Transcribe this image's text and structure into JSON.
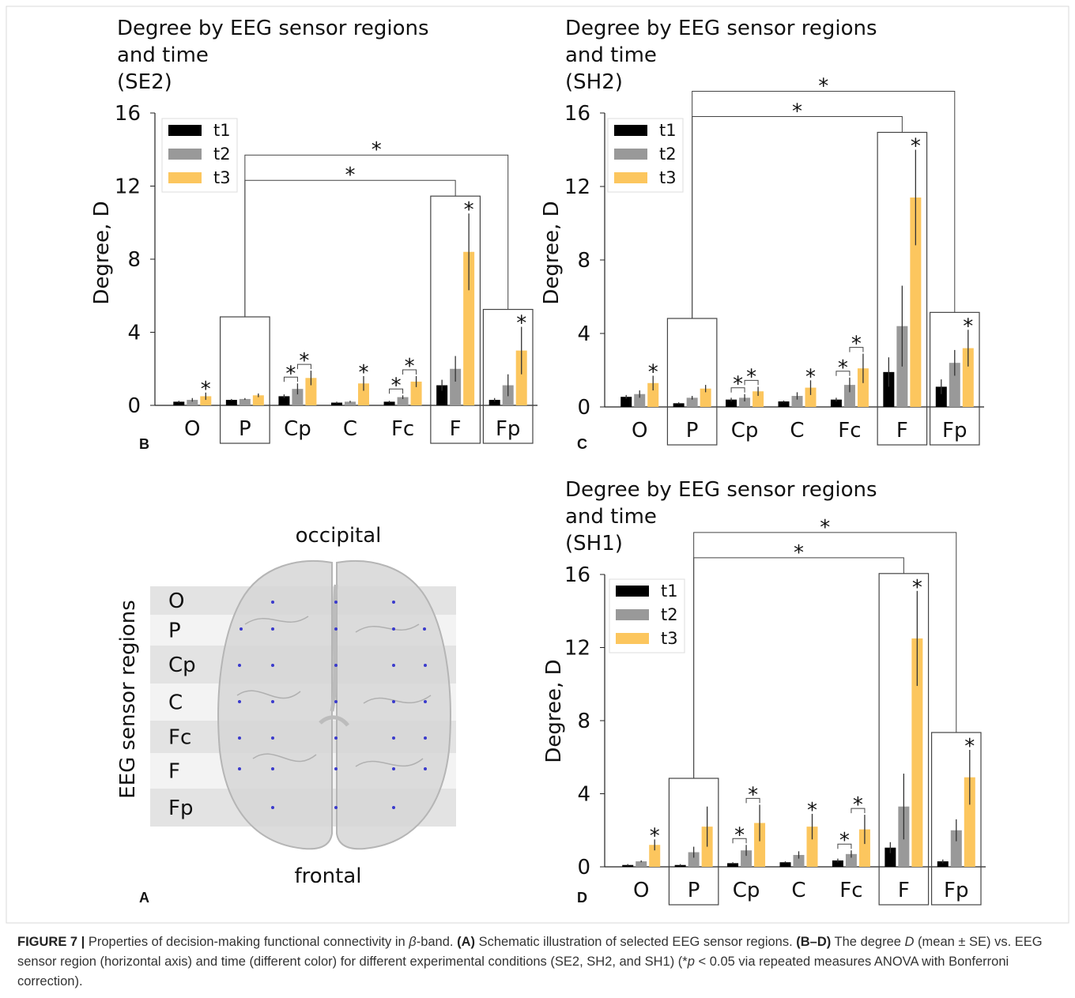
{
  "panel_a": {
    "label": "A",
    "top_label": "occipital",
    "bottom_label": "frontal",
    "axis_label": "EEG sensor regions",
    "regions": [
      "O",
      "P",
      "Cp",
      "C",
      "Fc",
      "F",
      "Fp"
    ]
  },
  "chart_data": [
    {
      "type": "bar",
      "panel_label": "B",
      "title": [
        "Degree by EEG sensor regions",
        "and time",
        "(SE2)"
      ],
      "ylabel": "Degree, D",
      "categories": [
        "O",
        "P",
        "Cp",
        "C",
        "Fc",
        "F",
        "Fp"
      ],
      "ylim": [
        0,
        16
      ],
      "yticks": [
        0,
        4,
        8,
        12,
        16
      ],
      "legend": "upper left",
      "series": [
        {
          "name": "t1",
          "color": "#000000",
          "values": [
            0.2,
            0.3,
            0.5,
            0.15,
            0.2,
            1.1,
            0.3
          ],
          "errors": [
            0.05,
            0.05,
            0.1,
            0.05,
            0.05,
            0.3,
            0.1
          ]
        },
        {
          "name": "t2",
          "color": "#999999",
          "values": [
            0.3,
            0.35,
            0.9,
            0.2,
            0.45,
            2.0,
            1.1
          ],
          "errors": [
            0.1,
            0.05,
            0.3,
            0.05,
            0.1,
            0.7,
            0.6
          ]
        },
        {
          "name": "t3",
          "color": "#fcc65e",
          "values": [
            0.5,
            0.55,
            1.5,
            1.2,
            1.3,
            8.4,
            3.0
          ],
          "errors": [
            0.2,
            0.1,
            0.4,
            0.4,
            0.3,
            2.1,
            1.3
          ]
        }
      ],
      "boxed": [
        "P",
        "F",
        "Fp"
      ],
      "brackets": [
        {
          "from": "P",
          "to": "F",
          "label": "*"
        },
        {
          "from": "P",
          "to": "Fp",
          "label": "*"
        }
      ],
      "pair_stars": [
        {
          "category": "Cp",
          "series": [
            "t1",
            "t2"
          ],
          "label": "*"
        },
        {
          "category": "Cp",
          "series": [
            "t2",
            "t3"
          ],
          "label": "*"
        },
        {
          "category": "Fc",
          "series": [
            "t1",
            "t2"
          ],
          "label": "*"
        },
        {
          "category": "Fc",
          "series": [
            "t2",
            "t3"
          ],
          "label": "*"
        }
      ],
      "bar_stars": [
        {
          "category": "O",
          "series": "t3",
          "label": "*"
        },
        {
          "category": "C",
          "series": "t3",
          "label": "*"
        },
        {
          "category": "F",
          "series": "t3",
          "label": "*"
        },
        {
          "category": "Fp",
          "series": "t3",
          "label": "*"
        }
      ]
    },
    {
      "type": "bar",
      "panel_label": "C",
      "title": [
        "Degree by EEG sensor regions",
        "and time",
        "(SH2)"
      ],
      "ylabel": "Degree, D",
      "categories": [
        "O",
        "P",
        "Cp",
        "C",
        "Fc",
        "F",
        "Fp"
      ],
      "ylim": [
        0,
        16
      ],
      "yticks": [
        0,
        4,
        8,
        12,
        16
      ],
      "legend": "upper left",
      "series": [
        {
          "name": "t1",
          "color": "#000000",
          "values": [
            0.55,
            0.2,
            0.4,
            0.3,
            0.4,
            1.9,
            1.1
          ],
          "errors": [
            0.1,
            0.05,
            0.1,
            0.05,
            0.1,
            0.8,
            0.4
          ]
        },
        {
          "name": "t2",
          "color": "#999999",
          "values": [
            0.7,
            0.5,
            0.5,
            0.6,
            1.2,
            4.4,
            2.4
          ],
          "errors": [
            0.2,
            0.1,
            0.2,
            0.2,
            0.4,
            2.2,
            0.7
          ]
        },
        {
          "name": "t3",
          "color": "#fcc65e",
          "values": [
            1.3,
            1.0,
            0.85,
            1.05,
            2.1,
            11.4,
            3.2
          ],
          "errors": [
            0.4,
            0.2,
            0.25,
            0.4,
            0.8,
            2.6,
            1.0
          ]
        }
      ],
      "boxed": [
        "P",
        "F",
        "Fp"
      ],
      "brackets": [
        {
          "from": "P",
          "to": "F",
          "label": "*"
        },
        {
          "from": "P",
          "to": "Fp",
          "label": "*"
        }
      ],
      "pair_stars": [
        {
          "category": "Cp",
          "series": [
            "t1",
            "t2"
          ],
          "label": "*"
        },
        {
          "category": "Cp",
          "series": [
            "t2",
            "t3"
          ],
          "label": "*"
        },
        {
          "category": "Fc",
          "series": [
            "t1",
            "t2"
          ],
          "label": "*"
        },
        {
          "category": "Fc",
          "series": [
            "t2",
            "t3"
          ],
          "label": "*"
        }
      ],
      "bar_stars": [
        {
          "category": "O",
          "series": "t3",
          "label": "*"
        },
        {
          "category": "C",
          "series": "t3",
          "label": "*"
        },
        {
          "category": "F",
          "series": "t3",
          "label": "*"
        },
        {
          "category": "Fp",
          "series": "t3",
          "label": "*"
        }
      ]
    },
    {
      "type": "bar",
      "panel_label": "D",
      "title": [
        "Degree by EEG sensor regions",
        "and time",
        "(SH1)"
      ],
      "ylabel": "Degree, D",
      "categories": [
        "O",
        "P",
        "Cp",
        "C",
        "Fc",
        "F",
        "Fp"
      ],
      "ylim": [
        0,
        16
      ],
      "yticks": [
        0,
        4,
        8,
        12,
        16
      ],
      "legend": "upper left",
      "series": [
        {
          "name": "t1",
          "color": "#000000",
          "values": [
            0.1,
            0.1,
            0.2,
            0.25,
            0.35,
            1.05,
            0.3
          ],
          "errors": [
            0.05,
            0.05,
            0.05,
            0.05,
            0.1,
            0.3,
            0.1
          ]
        },
        {
          "name": "t2",
          "color": "#999999",
          "values": [
            0.3,
            0.8,
            0.9,
            0.65,
            0.7,
            3.3,
            2.0
          ],
          "errors": [
            0.05,
            0.3,
            0.3,
            0.2,
            0.2,
            1.8,
            0.6
          ]
        },
        {
          "name": "t3",
          "color": "#fcc65e",
          "values": [
            1.2,
            2.2,
            2.4,
            2.2,
            2.05,
            12.5,
            4.9
          ],
          "errors": [
            0.3,
            1.1,
            1.0,
            0.7,
            0.8,
            2.6,
            1.5
          ]
        }
      ],
      "boxed": [
        "P",
        "F",
        "Fp"
      ],
      "brackets": [
        {
          "from": "P",
          "to": "F",
          "label": "*"
        },
        {
          "from": "P",
          "to": "Fp",
          "label": "*"
        }
      ],
      "pair_stars": [
        {
          "category": "Cp",
          "series": [
            "t1",
            "t2"
          ],
          "label": "*"
        },
        {
          "category": "Cp",
          "series": [
            "t2",
            "t3"
          ],
          "label": "*"
        },
        {
          "category": "Fc",
          "series": [
            "t1",
            "t2"
          ],
          "label": "*"
        },
        {
          "category": "Fc",
          "series": [
            "t2",
            "t3"
          ],
          "label": "*"
        }
      ],
      "bar_stars": [
        {
          "category": "O",
          "series": "t3",
          "label": "*"
        },
        {
          "category": "C",
          "series": "t3",
          "label": "*"
        },
        {
          "category": "F",
          "series": "t3",
          "label": "*"
        },
        {
          "category": "Fp",
          "series": "t3",
          "label": "*"
        }
      ]
    }
  ],
  "caption": [
    {
      "text": "FIGURE 7 |",
      "bold": true
    },
    {
      "text": " Properties of decision-making functional connectivity in "
    },
    {
      "text": "β",
      "italic": true
    },
    {
      "text": "-band. "
    },
    {
      "text": "(A)",
      "bold": true
    },
    {
      "text": " Schematic illustration of selected EEG sensor regions. "
    },
    {
      "text": "(B–D)",
      "bold": true
    },
    {
      "text": " The degree "
    },
    {
      "text": "D",
      "italic": true
    },
    {
      "text": " (mean ± SE) vs. EEG sensor region (horizontal axis) and time (different color) for different experimental conditions (SE2, SH2, and SH1) (*"
    },
    {
      "text": "p",
      "italic": true
    },
    {
      "text": " < 0.05 via repeated measures ANOVA with Bonferroni correction)."
    }
  ]
}
